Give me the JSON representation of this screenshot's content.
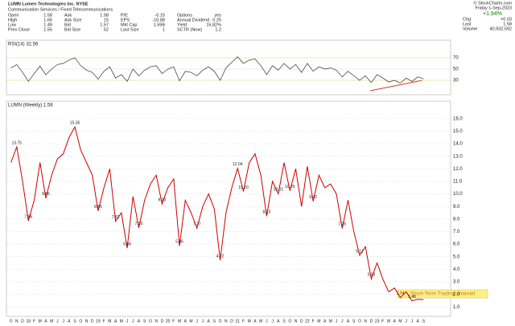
{
  "header": {
    "title": "LUMN Lumen Technologies Inc. NYSE",
    "subtitle": "Communication Services / Fixed Telecommunications",
    "fields": [
      [
        "Open",
        "1.58"
      ],
      [
        "High",
        "1.65"
      ],
      [
        "Low",
        "1.49"
      ],
      [
        "Prev Close",
        "1.55"
      ],
      [
        "Ask",
        "1.58"
      ],
      [
        "Ask Size",
        "15"
      ],
      [
        "Bid",
        "1.57"
      ],
      [
        "Bid Size",
        "52"
      ],
      [
        "P/E",
        "-0.15"
      ],
      [
        "EPS",
        "-10.88"
      ],
      [
        "Mkt Cap",
        "1.59B"
      ],
      [
        "Last Size",
        "1"
      ],
      [
        "Options",
        "yes"
      ],
      [
        "Annual Dividend",
        "0.25"
      ],
      [
        "Yield",
        "15.82%"
      ],
      [
        "SCTR (Now)",
        "1.2"
      ]
    ],
    "source": "© StockCharts.com",
    "date": "Friday 1-Sep-2023",
    "change_pct": "+1.94%",
    "right_fields": [
      [
        "Chg",
        "+0.03"
      ],
      [
        "Last",
        "1.58"
      ],
      [
        "Volume",
        "40,932,592"
      ]
    ]
  },
  "chart_data": [
    {
      "type": "line",
      "title": "RSI(14) 32.56",
      "color": "#333333",
      "ylim": [
        10,
        90
      ],
      "yticks": [
        30,
        50,
        70
      ],
      "grid": true,
      "values": [
        52,
        58,
        44,
        28,
        42,
        55,
        40,
        50,
        58,
        60,
        66,
        70,
        56,
        48,
        44,
        32,
        46,
        54,
        34,
        40,
        28,
        50,
        38,
        48,
        54,
        56,
        42,
        50,
        54,
        29,
        46,
        44,
        38,
        48,
        54,
        46,
        30,
        52,
        62,
        72,
        60,
        66,
        68,
        56,
        40,
        56,
        48,
        60,
        50,
        58,
        44,
        60,
        46,
        54,
        50,
        52,
        48,
        36,
        46,
        38,
        30,
        38,
        26,
        40,
        34,
        27,
        30,
        25,
        34,
        28,
        36,
        32.56
      ]
    },
    {
      "type": "line",
      "title": "LUMN (Weekly) 1.58",
      "color": "#cc0000",
      "annotation": "Short-Term Trading channel",
      "ylim": [
        0.5,
        16.5
      ],
      "grid": true,
      "yticks": [
        {
          "value": 1,
          "label": "1.0"
        },
        {
          "value": 2,
          "label": "2.0"
        },
        {
          "value": 3,
          "label": "3.0"
        },
        {
          "value": 4,
          "label": "4.0"
        },
        {
          "value": 5,
          "label": "5.0"
        },
        {
          "value": 6,
          "label": "6.0"
        },
        {
          "value": 7,
          "label": "7.0"
        },
        {
          "value": 8,
          "label": "8.0"
        },
        {
          "value": 9,
          "label": "9.0"
        },
        {
          "value": 10,
          "label": "10.0"
        },
        {
          "value": 11,
          "label": "11.0"
        },
        {
          "value": 12,
          "label": "12.0"
        },
        {
          "value": 13,
          "label": "13.0"
        },
        {
          "value": 14,
          "label": "14.0"
        },
        {
          "value": 15,
          "label": "15.0"
        },
        {
          "value": 16,
          "label": "16.0"
        }
      ],
      "categories": [
        "O",
        "N",
        "D",
        "18",
        "F",
        "M",
        "A",
        "M",
        "J",
        "J",
        "A",
        "S",
        "O",
        "N",
        "D",
        "19",
        "F",
        "M",
        "A",
        "M",
        "J",
        "J",
        "A",
        "S",
        "O",
        "N",
        "D",
        "20",
        "F",
        "M",
        "A",
        "M",
        "J",
        "J",
        "A",
        "S",
        "O",
        "N",
        "D",
        "21",
        "F",
        "M",
        "A",
        "M",
        "J",
        "J",
        "A",
        "S",
        "O",
        "N",
        "D",
        "22",
        "F",
        "M",
        "A",
        "M",
        "J",
        "J",
        "A",
        "S",
        "O",
        "N",
        "D",
        "23",
        "F",
        "M",
        "A",
        "M",
        "J",
        "J",
        "A",
        "S"
      ],
      "values": [
        12.5,
        13.75,
        11.0,
        7.86,
        9.5,
        12.5,
        9.66,
        11.5,
        12.8,
        13.2,
        14.5,
        15.35,
        13.5,
        12.5,
        11.5,
        8.65,
        10.5,
        12.0,
        7.82,
        8.5,
        5.68,
        9.8,
        7.3,
        9.5,
        10.8,
        11.5,
        9.2,
        10.5,
        11.2,
        5.86,
        9.5,
        8.5,
        7.27,
        9.0,
        10.0,
        8.8,
        4.72,
        8.5,
        10.5,
        12.04,
        10.2,
        12.5,
        13.2,
        11.5,
        8.23,
        11.0,
        10.02,
        12.5,
        10.25,
        12.0,
        9.0,
        12.2,
        9.42,
        11.5,
        10.5,
        10.8,
        10.0,
        7.26,
        9.5,
        7.0,
        5.11,
        5.8,
        3.23,
        4.5,
        3.2,
        2.2,
        2.5,
        1.74,
        2.2,
        1.48,
        1.6,
        1.58
      ],
      "value_labels": [
        null,
        "13.75",
        null,
        "7.86",
        null,
        null,
        "9.66",
        null,
        null,
        null,
        null,
        "15.35",
        null,
        null,
        null,
        "8.65",
        null,
        null,
        "7.82",
        null,
        "5.68",
        null,
        "7.30",
        null,
        null,
        null,
        "9.20",
        null,
        null,
        "5.86",
        null,
        null,
        "7.27",
        null,
        null,
        null,
        "4.72",
        null,
        null,
        "12.04",
        "10.20",
        null,
        null,
        null,
        "8.23",
        null,
        "10.02",
        null,
        "10.25",
        null,
        null,
        null,
        "9.42",
        null,
        null,
        null,
        null,
        "7.26",
        null,
        null,
        "5.11",
        null,
        "3.23",
        null,
        null,
        null,
        null,
        "1.74",
        null,
        "1.48",
        null,
        null
      ]
    }
  ]
}
